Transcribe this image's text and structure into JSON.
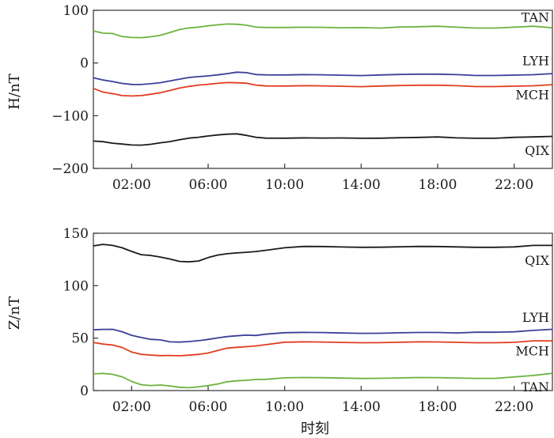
{
  "chart_data": [
    {
      "type": "line",
      "ylabel": "H/nT",
      "xlabel": "",
      "xlim": [
        0,
        24
      ],
      "ylim": [
        -200,
        100
      ],
      "yticks": [
        100,
        0,
        -100,
        -200
      ],
      "ytick_labels": [
        "100",
        "0",
        "−100",
        "−200"
      ],
      "xticks": [
        2,
        6,
        10,
        14,
        18,
        22
      ],
      "xtick_labels": [
        "02:00",
        "06:00",
        "10:00",
        "14:00",
        "18:00",
        "22:00"
      ],
      "series": [
        {
          "name": "TAN",
          "color": "#6cb33f",
          "x": [
            0,
            0.5,
            1,
            1.5,
            2,
            2.5,
            3,
            3.5,
            4,
            4.5,
            5,
            5.5,
            6,
            6.5,
            7,
            7.5,
            8,
            8.5,
            9,
            10,
            11,
            12,
            13,
            14,
            15,
            16,
            17,
            18,
            19,
            20,
            21,
            22,
            23,
            24
          ],
          "values": [
            61,
            56,
            55,
            50,
            49,
            49,
            50,
            52,
            57,
            63,
            67,
            69,
            71,
            72,
            73,
            73,
            72,
            69,
            68,
            67,
            67,
            67,
            67,
            68,
            67,
            68,
            68,
            69,
            68,
            67,
            67,
            68,
            69,
            66
          ]
        },
        {
          "name": "LYH",
          "color": "#3b3f98",
          "x": [
            0,
            0.5,
            1,
            1.5,
            2,
            2.5,
            3,
            3.5,
            4,
            4.5,
            5,
            5.5,
            6,
            6.5,
            7,
            7.5,
            8,
            8.5,
            9,
            10,
            11,
            12,
            13,
            14,
            15,
            16,
            17,
            18,
            19,
            20,
            21,
            22,
            23,
            24
          ],
          "values": [
            -28,
            -33,
            -36,
            -39,
            -40,
            -40,
            -39,
            -38,
            -35,
            -31,
            -27,
            -25,
            -24,
            -23,
            -21,
            -18,
            -18,
            -21,
            -22,
            -23,
            -23,
            -23,
            -23,
            -23,
            -22,
            -22,
            -22,
            -22,
            -22,
            -23,
            -23,
            -23,
            -23,
            -21
          ]
        },
        {
          "name": "MCH",
          "color": "#e23b22",
          "x": [
            0,
            0.5,
            1,
            1.5,
            2,
            2.5,
            3,
            3.5,
            4,
            4.5,
            5,
            5.5,
            6,
            6.5,
            7,
            7.5,
            8,
            8.5,
            9,
            10,
            11,
            12,
            13,
            14,
            15,
            16,
            17,
            18,
            19,
            20,
            21,
            22,
            23,
            24
          ],
          "values": [
            -48,
            -56,
            -59,
            -62,
            -62,
            -61,
            -59,
            -57,
            -53,
            -48,
            -44,
            -41,
            -40,
            -39,
            -38,
            -38,
            -38,
            -41,
            -43,
            -44,
            -44,
            -44,
            -44,
            -44,
            -43,
            -43,
            -43,
            -43,
            -43,
            -44,
            -44,
            -44,
            -44,
            -42
          ]
        },
        {
          "name": "QIX",
          "color": "#1a1a1a",
          "x": [
            0,
            0.5,
            1,
            1.5,
            2,
            2.5,
            3,
            3.5,
            4,
            4.5,
            5,
            5.5,
            6,
            6.5,
            7,
            7.5,
            8,
            8.5,
            9,
            10,
            11,
            12,
            13,
            14,
            15,
            16,
            17,
            18,
            19,
            20,
            21,
            22,
            23,
            24
          ],
          "values": [
            -148,
            -150,
            -153,
            -154,
            -155,
            -155,
            -154,
            -152,
            -150,
            -146,
            -142,
            -140,
            -138,
            -137,
            -136,
            -135,
            -137,
            -140,
            -142,
            -143,
            -143,
            -143,
            -142,
            -142,
            -142,
            -142,
            -142,
            -141,
            -142,
            -142,
            -142,
            -141,
            -141,
            -140
          ]
        }
      ]
    },
    {
      "type": "line",
      "ylabel": "Z/nT",
      "xlabel": "时刻",
      "xlim": [
        0,
        24
      ],
      "ylim": [
        0,
        150
      ],
      "yticks": [
        150,
        100,
        50,
        0
      ],
      "ytick_labels": [
        "150",
        "100",
        "50",
        "0"
      ],
      "xticks": [
        2,
        6,
        10,
        14,
        18,
        22
      ],
      "xtick_labels": [
        "02:00",
        "06:00",
        "10:00",
        "14:00",
        "18:00",
        "22:00"
      ],
      "series": [
        {
          "name": "QIX",
          "color": "#1a1a1a",
          "x": [
            0,
            0.5,
            1,
            1.5,
            2,
            2.5,
            3,
            3.5,
            4,
            4.5,
            5,
            5.5,
            6,
            6.5,
            7,
            7.5,
            8,
            8.5,
            9,
            10,
            11,
            12,
            13,
            14,
            15,
            16,
            17,
            18,
            19,
            20,
            21,
            22,
            23,
            24
          ],
          "values": [
            138,
            139,
            138,
            136,
            133,
            130,
            129,
            127,
            125,
            123,
            123,
            124,
            127,
            129,
            130,
            131,
            132,
            133,
            134,
            136,
            137,
            137,
            137,
            137,
            137,
            137,
            137,
            137,
            137,
            137,
            137,
            137,
            138,
            138
          ]
        },
        {
          "name": "LYH",
          "color": "#3b3f98",
          "x": [
            0,
            0.5,
            1,
            1.5,
            2,
            2.5,
            3,
            3.5,
            4,
            4.5,
            5,
            5.5,
            6,
            6.5,
            7,
            7.5,
            8,
            8.5,
            9,
            10,
            11,
            12,
            13,
            14,
            15,
            16,
            17,
            18,
            19,
            20,
            21,
            22,
            23,
            24
          ],
          "values": [
            58,
            58,
            58,
            56,
            53,
            51,
            49,
            48,
            46,
            46,
            47,
            48,
            49,
            50,
            51,
            52,
            53,
            53,
            54,
            55,
            55,
            55,
            55,
            55,
            55,
            55,
            55,
            55,
            55,
            56,
            56,
            56,
            57,
            58
          ]
        },
        {
          "name": "MCH",
          "color": "#e23b22",
          "x": [
            0,
            0.5,
            1,
            1.5,
            2,
            2.5,
            3,
            3.5,
            4,
            4.5,
            5,
            5.5,
            6,
            6.5,
            7,
            7.5,
            8,
            8.5,
            9,
            10,
            11,
            12,
            13,
            14,
            15,
            16,
            17,
            18,
            19,
            20,
            21,
            22,
            23,
            24
          ],
          "values": [
            46,
            44,
            43,
            41,
            37,
            35,
            34,
            33,
            33,
            33,
            34,
            35,
            36,
            38,
            40,
            41,
            42,
            43,
            44,
            46,
            46,
            46,
            46,
            46,
            46,
            46,
            46,
            46,
            46,
            46,
            46,
            46,
            47,
            47
          ]
        },
        {
          "name": "TAN",
          "color": "#6cb33f",
          "x": [
            0,
            0.5,
            1,
            1.5,
            2,
            2.5,
            3,
            3.5,
            4,
            4.5,
            5,
            5.5,
            6,
            6.5,
            7,
            7.5,
            8,
            8.5,
            9,
            10,
            11,
            12,
            13,
            14,
            15,
            16,
            17,
            18,
            19,
            20,
            21,
            22,
            23,
            24
          ],
          "values": [
            16,
            16,
            15,
            13,
            9,
            6,
            5,
            5,
            4,
            3,
            3,
            4,
            5,
            6,
            8,
            9,
            10,
            11,
            11,
            12,
            12,
            12,
            12,
            12,
            12,
            12,
            12,
            12,
            12,
            12,
            12,
            13,
            14,
            16
          ]
        }
      ]
    }
  ]
}
